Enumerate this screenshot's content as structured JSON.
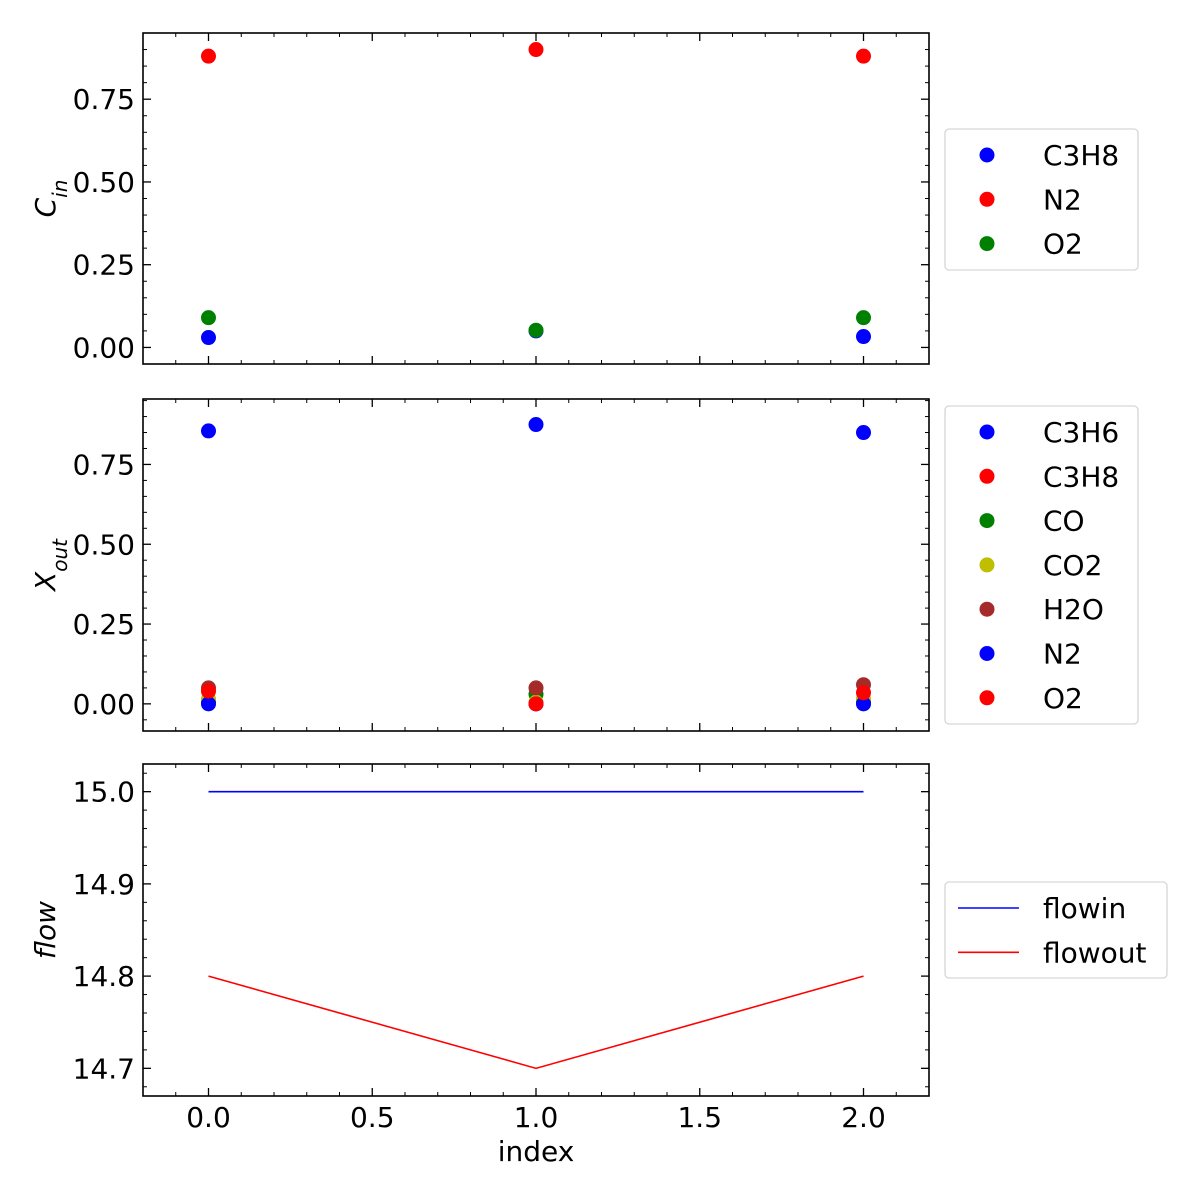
{
  "chart_data": [
    {
      "type": "scatter",
      "ylabel": "C",
      "ylabel_sub": "in",
      "xlim": [
        -0.2,
        2.2
      ],
      "ylim": [
        -0.05,
        0.95
      ],
      "xticks": [
        0.0,
        0.5,
        1.0,
        1.5,
        2.0
      ],
      "xtick_labels": [
        "0.0",
        "0.5",
        "1.0",
        "1.5",
        "2.0"
      ],
      "show_xtick_labels": false,
      "yticks": [
        0.0,
        0.25,
        0.5,
        0.75
      ],
      "ytick_labels": [
        "0.00",
        "0.25",
        "0.50",
        "0.75"
      ],
      "grid": false,
      "legend_position": "right",
      "x": [
        0,
        1,
        2
      ],
      "series": [
        {
          "name": "C3H8",
          "color": "#0000ff",
          "values": [
            0.03,
            0.05,
            0.033
          ]
        },
        {
          "name": "N2",
          "color": "#ff0000",
          "values": [
            0.88,
            0.9,
            0.88
          ]
        },
        {
          "name": "O2",
          "color": "#008000",
          "values": [
            0.09,
            0.052,
            0.09
          ]
        }
      ]
    },
    {
      "type": "scatter",
      "ylabel": "X",
      "ylabel_sub": "out",
      "xlim": [
        -0.2,
        2.2
      ],
      "ylim": [
        -0.085,
        0.955
      ],
      "xticks": [
        0.0,
        0.5,
        1.0,
        1.5,
        2.0
      ],
      "xtick_labels": [
        "0.0",
        "0.5",
        "1.0",
        "1.5",
        "2.0"
      ],
      "show_xtick_labels": false,
      "yticks": [
        0.0,
        0.25,
        0.5,
        0.75
      ],
      "ytick_labels": [
        "0.00",
        "0.25",
        "0.50",
        "0.75"
      ],
      "grid": false,
      "legend_position": "right",
      "x": [
        0,
        1,
        2
      ],
      "series": [
        {
          "name": "C3H6",
          "color": "#0000ff",
          "values": [
            0.855,
            0.875,
            0.85
          ]
        },
        {
          "name": "C3H8",
          "color": "#ff0000",
          "values": [
            0.003,
            0.0,
            0.003
          ]
        },
        {
          "name": "CO",
          "color": "#008000",
          "values": [
            0.01,
            0.03,
            0.01
          ]
        },
        {
          "name": "CO2",
          "color": "#bfbf00",
          "values": [
            0.015,
            0.005,
            0.015
          ]
        },
        {
          "name": "H2O",
          "color": "#a52a2a",
          "values": [
            0.05,
            0.05,
            0.06
          ]
        },
        {
          "name": "N2",
          "color": "#0000ff",
          "values": [
            0.0,
            0.0,
            0.0
          ]
        },
        {
          "name": "O2",
          "color": "#ff0000",
          "values": [
            0.04,
            0.0,
            0.035
          ]
        }
      ]
    },
    {
      "type": "line",
      "ylabel": "flow",
      "xlabel": "index",
      "xlim": [
        -0.2,
        2.2
      ],
      "ylim": [
        14.67,
        15.03
      ],
      "xticks": [
        0.0,
        0.5,
        1.0,
        1.5,
        2.0
      ],
      "xtick_labels": [
        "0.0",
        "0.5",
        "1.0",
        "1.5",
        "2.0"
      ],
      "show_xtick_labels": true,
      "yticks": [
        14.7,
        14.8,
        14.9,
        15.0
      ],
      "ytick_labels": [
        "14.7",
        "14.8",
        "14.9",
        "15.0"
      ],
      "grid": false,
      "legend_position": "right",
      "x": [
        0,
        1,
        2
      ],
      "series": [
        {
          "name": "flowin",
          "color": "#0000ff",
          "values": [
            15.0,
            15.0,
            15.0
          ]
        },
        {
          "name": "flowout",
          "color": "#ff0000",
          "values": [
            14.8,
            14.7,
            14.8
          ]
        }
      ]
    }
  ]
}
